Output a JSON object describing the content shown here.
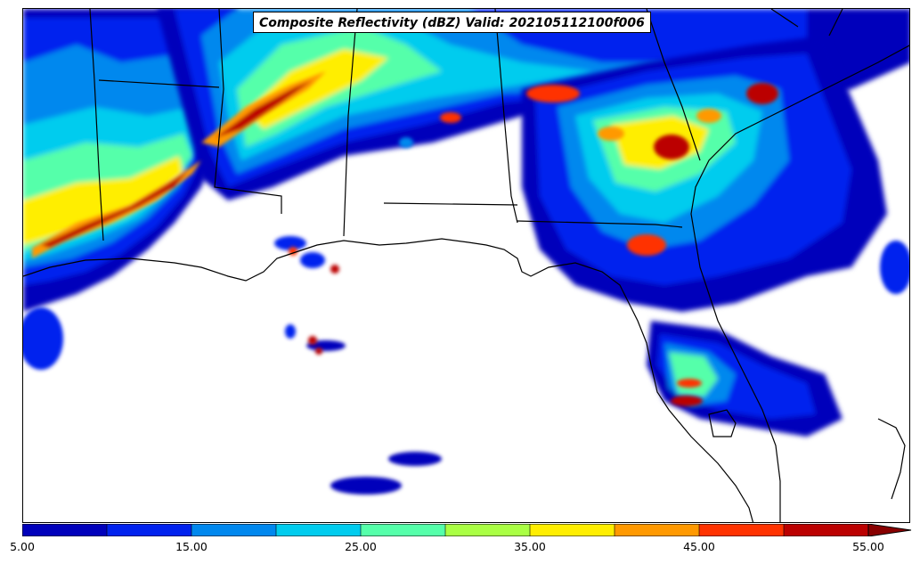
{
  "title": "Composite Reflectivity (dBZ) Valid: 202105112100f006",
  "colorbar": {
    "tick_labels": [
      "5.00",
      "15.00",
      "25.00",
      "35.00",
      "45.00",
      "55.00"
    ],
    "extend": "max",
    "colors": [
      "#0000bb",
      "#0022ee",
      "#0088ee",
      "#00ccee",
      "#55ffaa",
      "#aaff44",
      "#ffee00",
      "#ff9900",
      "#ff3300",
      "#bb0000",
      "#880000"
    ]
  }
}
